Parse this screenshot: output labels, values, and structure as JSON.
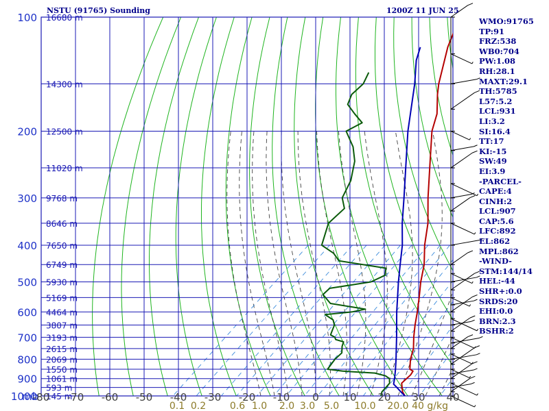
{
  "header": {
    "title": "NSTU (91765) Sounding",
    "time": "1200Z 11 JUN 25"
  },
  "stats": [
    "WMO:91765",
    "TP:91",
    "FRZ:538",
    "WB0:704",
    "PW:1.08",
    "RH:28.1",
    "MAXT:29.1",
    "TH:5785",
    "L57:5.2",
    "LCL:931",
    "LI:3.2",
    "SI:16.4",
    "TT:17",
    "KI:-15",
    "SW:49",
    "EI:3.9",
    "-PARCEL-",
    "CAPE:4",
    "CINH:2",
    "LCL:907",
    "CAP:5.6",
    "LFC:892",
    "EL:862",
    "MPL:862",
    "-WIND-",
    "STM:144/14",
    "HEL:-44",
    "SHR+:0.0",
    "SRDS:20",
    "EHI:0.0",
    "BRN:2.3",
    "BSHR:2"
  ],
  "colors": {
    "frame": "#1818b4",
    "temperature": "#b40000",
    "dewpoint": "#0a5a0a",
    "parcel": "#0000b4",
    "dry_adiabat": "#1eb41e",
    "moist_adiabat": "#404040",
    "mixing_ratio": "#3c8cdc",
    "label_pressure": "#1e32c8",
    "label_xaxis": "#404040",
    "label_mixing": "#8c7a28"
  },
  "chart_data": {
    "type": "line",
    "title": "",
    "xlabel": "",
    "ylabel": "mb",
    "y_scale": "log",
    "ylim": [
      1000,
      100
    ],
    "xlim": [
      -80,
      40
    ],
    "skew_degC_per_log10p": 120,
    "pressure_ticks": [
      100,
      200,
      300,
      400,
      500,
      600,
      700,
      800,
      900,
      1000
    ],
    "temperature_ticks": [
      "-80",
      "-70",
      "-60",
      "-50",
      "-40",
      "-30",
      "-20",
      "-10",
      "0",
      "10",
      "20",
      "30",
      "40"
    ],
    "mixing_ratio_ticks": [
      "0.1",
      "0.2",
      "0.6",
      "1.0",
      "2.0",
      "3.0",
      "5.0",
      "10.0",
      "20.0",
      "40 g/kg"
    ],
    "height_labels": [
      {
        "p": 100,
        "label": "16680 m"
      },
      {
        "p": 150,
        "label": "14300 m"
      },
      {
        "p": 200,
        "label": "12500 m"
      },
      {
        "p": 250,
        "label": "11020 m"
      },
      {
        "p": 300,
        "label": "9768 m"
      },
      {
        "p": 350,
        "label": "8646 m"
      },
      {
        "p": 400,
        "label": "7650 m"
      },
      {
        "p": 450,
        "label": "6749 m"
      },
      {
        "p": 500,
        "label": "5930 m"
      },
      {
        "p": 550,
        "label": "5169 m"
      },
      {
        "p": 600,
        "label": "4464 m"
      },
      {
        "p": 650,
        "label": "3807 m"
      },
      {
        "p": 700,
        "label": "3193 m"
      },
      {
        "p": 750,
        "label": "2615 m"
      },
      {
        "p": 800,
        "label": "2069 m"
      },
      {
        "p": 850,
        "label": "1550 m"
      },
      {
        "p": 900,
        "label": "1061 m"
      },
      {
        "p": 950,
        "label": "593 m"
      },
      {
        "p": 1000,
        "label": "145 m"
      }
    ],
    "series": [
      {
        "key": "temperature",
        "points": [
          [
            1000,
            26
          ],
          [
            975,
            24
          ],
          [
            950,
            22.5
          ],
          [
            925,
            21
          ],
          [
            900,
            21
          ],
          [
            880,
            21
          ],
          [
            860,
            20.5
          ],
          [
            850,
            19
          ],
          [
            800,
            16
          ],
          [
            750,
            13.5
          ],
          [
            700,
            10
          ],
          [
            650,
            6.5
          ],
          [
            600,
            3
          ],
          [
            550,
            -1
          ],
          [
            500,
            -5.5
          ],
          [
            450,
            -10
          ],
          [
            400,
            -16
          ],
          [
            350,
            -22
          ],
          [
            300,
            -30
          ],
          [
            250,
            -39
          ],
          [
            200,
            -50
          ],
          [
            180,
            -54
          ],
          [
            160,
            -60
          ],
          [
            150,
            -63
          ],
          [
            120,
            -72
          ],
          [
            100,
            -78
          ]
        ]
      },
      {
        "key": "dewpoint",
        "points": [
          [
            1000,
            19
          ],
          [
            975,
            18
          ],
          [
            950,
            17.8
          ],
          [
            925,
            17.5
          ],
          [
            900,
            16
          ],
          [
            885,
            14
          ],
          [
            870,
            10
          ],
          [
            860,
            0
          ],
          [
            850,
            -5
          ],
          [
            800,
            -6
          ],
          [
            770,
            -6
          ],
          [
            740,
            -8
          ],
          [
            720,
            -9
          ],
          [
            710,
            -12
          ],
          [
            700,
            -13
          ],
          [
            690,
            -15
          ],
          [
            670,
            -16
          ],
          [
            650,
            -17
          ],
          [
            630,
            -19
          ],
          [
            610,
            -23
          ],
          [
            600,
            -16
          ],
          [
            590,
            -13
          ],
          [
            570,
            -25
          ],
          [
            540,
            -30
          ],
          [
            520,
            -30
          ],
          [
            500,
            -20
          ],
          [
            480,
            -18
          ],
          [
            460,
            -20
          ],
          [
            440,
            -36
          ],
          [
            420,
            -40
          ],
          [
            400,
            -46
          ],
          [
            350,
            -51
          ],
          [
            320,
            -51
          ],
          [
            300,
            -55
          ],
          [
            270,
            -58
          ],
          [
            240,
            -63
          ],
          [
            220,
            -68
          ],
          [
            200,
            -75
          ],
          [
            190,
            -73
          ],
          [
            180,
            -78
          ],
          [
            170,
            -83
          ],
          [
            160,
            -85
          ],
          [
            150,
            -85
          ],
          [
            140,
            -87
          ]
        ]
      },
      {
        "key": "parcel",
        "points": [
          [
            1000,
            26
          ],
          [
            975,
            23.5
          ],
          [
            950,
            21
          ],
          [
            931,
            19
          ],
          [
            925,
            18.7
          ],
          [
            900,
            17.5
          ],
          [
            850,
            14.8
          ],
          [
            800,
            11.8
          ],
          [
            700,
            5
          ],
          [
            600,
            -3
          ],
          [
            500,
            -12
          ],
          [
            450,
            -17
          ],
          [
            400,
            -22.5
          ],
          [
            350,
            -29.5
          ],
          [
            300,
            -37
          ],
          [
            250,
            -46
          ],
          [
            200,
            -57
          ],
          [
            150,
            -70
          ],
          [
            130,
            -77
          ],
          [
            120,
            -80
          ]
        ]
      }
    ],
    "wind_barbs_present": true,
    "grid": true
  }
}
